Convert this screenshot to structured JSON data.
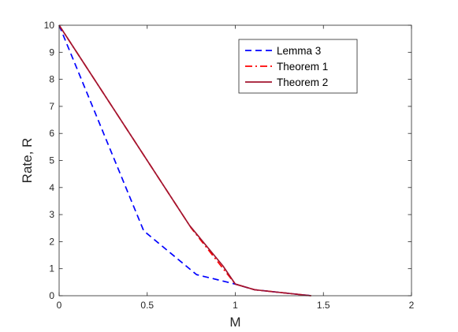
{
  "chart_data": {
    "type": "line",
    "title": "",
    "xlabel": "M",
    "ylabel": "Rate, R",
    "xlim": [
      0,
      2
    ],
    "ylim": [
      0,
      10
    ],
    "xticks": [
      0,
      0.5,
      1,
      1.5,
      2
    ],
    "xtick_labels": [
      "0",
      "0.5",
      "1",
      "1.5",
      "2"
    ],
    "yticks": [
      0,
      1,
      2,
      3,
      4,
      5,
      6,
      7,
      8,
      9,
      10
    ],
    "ytick_labels": [
      "0",
      "1",
      "2",
      "3",
      "4",
      "5",
      "6",
      "7",
      "8",
      "9",
      "10"
    ],
    "grid": false,
    "legend_position": "top-right",
    "series": [
      {
        "name": "Lemma 3",
        "color": "#0000ff",
        "dash": "dashed",
        "x": [
          0,
          0.48,
          0.78,
          1.0,
          1.11,
          1.43
        ],
        "y": [
          10,
          2.4,
          0.78,
          0.43,
          0.22,
          0
        ]
      },
      {
        "name": "Theorem 1",
        "color": "#ff0000",
        "dash": "dashdot",
        "x": [
          0,
          0.75,
          1.0,
          1.11,
          1.43
        ],
        "y": [
          10,
          2.5,
          0.43,
          0.22,
          0
        ]
      },
      {
        "name": "Theorem 2",
        "color": "#a2142f",
        "dash": "solid",
        "x": [
          0,
          0.74,
          0.93,
          1.0,
          1.11,
          1.43
        ],
        "y": [
          10,
          2.6,
          1.1,
          0.43,
          0.22,
          0
        ]
      }
    ]
  }
}
